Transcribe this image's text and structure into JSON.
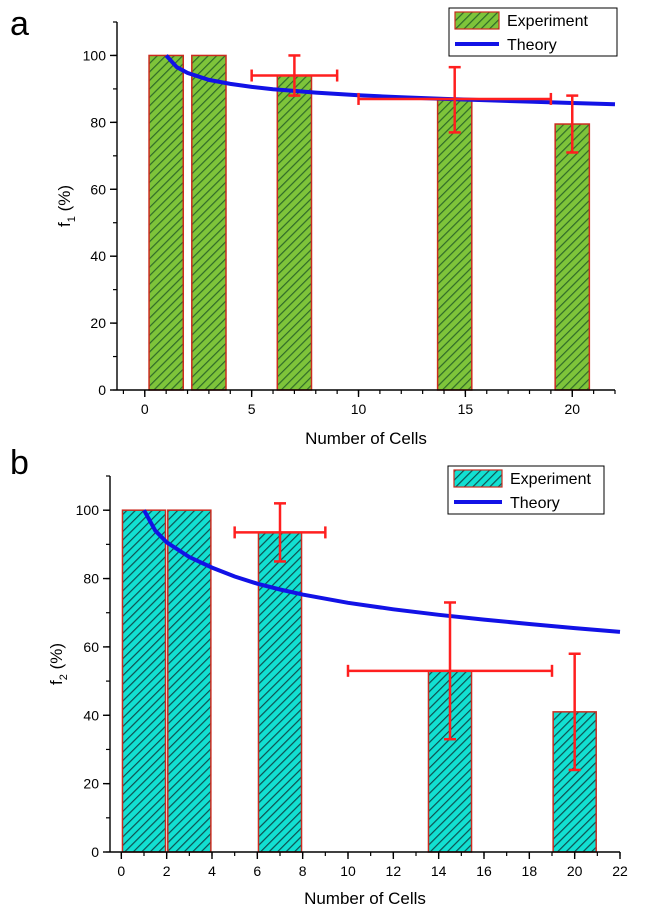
{
  "chart_data": [
    {
      "type": "bar",
      "panel_label": "a",
      "xlabel": "Number of Cells",
      "ylabel_main": "f",
      "ylabel_sub": "1",
      "ylabel_unit": " (%)",
      "xlim": [
        -1.3,
        22
      ],
      "ylim": [
        0,
        110
      ],
      "xticks": [
        0,
        5,
        10,
        15,
        20
      ],
      "yticks": [
        0,
        20,
        40,
        60,
        80,
        100
      ],
      "xminor_step": 1,
      "yminor_step": 10,
      "bar_fill": "#7ec43a",
      "bar_hatch": "#2f6b28",
      "bar_edge": "#cc2b1f",
      "bars": [
        {
          "x": 1,
          "width": 1.6,
          "value": 100
        },
        {
          "x": 3,
          "width": 1.6,
          "value": 100
        },
        {
          "x": 7,
          "width": 1.6,
          "value": 94
        },
        {
          "x": 14.5,
          "width": 1.6,
          "value": 87
        },
        {
          "x": 20,
          "width": 1.6,
          "value": 79.5
        }
      ],
      "error_bars": [
        {
          "x": 7,
          "y": 94,
          "xerr": [
            5,
            9
          ],
          "yerr": [
            88,
            100
          ]
        },
        {
          "x": 14.5,
          "y": 87,
          "xerr": [
            10,
            19
          ],
          "yerr": [
            77,
            96.5
          ]
        },
        {
          "x": 20,
          "y": 79.5,
          "xerr": null,
          "yerr": [
            71,
            88
          ]
        }
      ],
      "error_color": "#ff1f1f",
      "theory": {
        "color": "#1212e6",
        "points": [
          [
            1,
            100
          ],
          [
            1.5,
            96.5
          ],
          [
            2,
            94.8
          ],
          [
            3,
            92.7
          ],
          [
            4,
            91.5
          ],
          [
            5,
            90.6
          ],
          [
            6,
            89.9
          ],
          [
            7,
            89.4
          ],
          [
            8,
            88.9
          ],
          [
            10,
            88.1
          ],
          [
            12,
            87.5
          ],
          [
            14,
            87
          ],
          [
            16,
            86.6
          ],
          [
            18,
            86.2
          ],
          [
            20,
            85.8
          ],
          [
            22,
            85.4
          ]
        ]
      },
      "legend": {
        "position": "top-right",
        "entries": [
          "Experiment",
          "Theory"
        ]
      }
    },
    {
      "type": "bar",
      "panel_label": "b",
      "xlabel": "Number of Cells",
      "ylabel_main": "f",
      "ylabel_sub": "2",
      "ylabel_unit": " (%)",
      "xlim": [
        -0.5,
        22
      ],
      "ylim": [
        0,
        110
      ],
      "xticks": [
        0,
        2,
        4,
        6,
        8,
        10,
        12,
        14,
        16,
        18,
        20,
        22
      ],
      "yticks": [
        0,
        20,
        40,
        60,
        80,
        100
      ],
      "xminor_step": 1,
      "yminor_step": 10,
      "bar_fill": "#12e0d2",
      "bar_hatch": "#0d4f4f",
      "bar_edge": "#cc2b1f",
      "bars": [
        {
          "x": 1,
          "width": 1.9,
          "value": 100
        },
        {
          "x": 3,
          "width": 1.9,
          "value": 100
        },
        {
          "x": 7,
          "width": 1.9,
          "value": 93.5
        },
        {
          "x": 14.5,
          "width": 1.9,
          "value": 53
        },
        {
          "x": 20,
          "width": 1.9,
          "value": 41
        }
      ],
      "error_bars": [
        {
          "x": 7,
          "y": 93.5,
          "xerr": [
            5,
            9
          ],
          "yerr": [
            85,
            102
          ]
        },
        {
          "x": 14.5,
          "y": 53,
          "xerr": [
            10,
            19
          ],
          "yerr": [
            33,
            73
          ]
        },
        {
          "x": 20,
          "y": 41,
          "xerr": null,
          "yerr": [
            24,
            58
          ]
        }
      ],
      "error_color": "#ff1f1f",
      "theory": {
        "color": "#1212e6",
        "points": [
          [
            1,
            100
          ],
          [
            1.5,
            94
          ],
          [
            2,
            90.6
          ],
          [
            3,
            86.3
          ],
          [
            4,
            83.2
          ],
          [
            5,
            80.6
          ],
          [
            6,
            78.5
          ],
          [
            7,
            76.8
          ],
          [
            8,
            75.3
          ],
          [
            10,
            72.9
          ],
          [
            12,
            71
          ],
          [
            14,
            69.4
          ],
          [
            16,
            68
          ],
          [
            18,
            66.7
          ],
          [
            20,
            65.5
          ],
          [
            22,
            64.4
          ]
        ]
      },
      "legend": {
        "position": "top-right",
        "entries": [
          "Experiment",
          "Theory"
        ]
      }
    }
  ]
}
